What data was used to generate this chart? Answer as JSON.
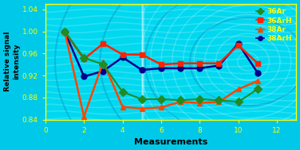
{
  "title": "",
  "xlabel": "Measurements",
  "ylabel": "Relative signal\nintensity",
  "xlim": [
    0,
    13
  ],
  "ylim": [
    0.84,
    1.05
  ],
  "yticks": [
    0.84,
    0.88,
    0.92,
    0.96,
    1.0,
    1.04
  ],
  "xticks": [
    0,
    2,
    4,
    6,
    8,
    10,
    12
  ],
  "bg_outer": "#00C8E8",
  "bg_inner": "#00D8F0",
  "series": {
    "36Ar": {
      "x": [
        1,
        2,
        3,
        4,
        5,
        6,
        7,
        8,
        9,
        10,
        11
      ],
      "y": [
        1.0,
        0.952,
        0.94,
        0.89,
        0.877,
        0.877,
        0.875,
        0.877,
        0.875,
        0.872,
        0.895
      ],
      "color": "#228B22",
      "marker": "D",
      "markersize": 5,
      "linewidth": 1.5
    },
    "36ArH": {
      "x": [
        1,
        2,
        3,
        4,
        5,
        6,
        7,
        8,
        9,
        10,
        11
      ],
      "y": [
        1.0,
        0.95,
        0.978,
        0.958,
        0.958,
        0.94,
        0.942,
        0.942,
        0.942,
        0.975,
        0.942
      ],
      "color": "#FF2200",
      "marker": "s",
      "markersize": 5,
      "linewidth": 1.8
    },
    "38Ar": {
      "x": [
        1,
        2,
        3,
        4,
        5,
        6,
        7,
        8,
        9,
        10,
        11
      ],
      "y": [
        1.0,
        0.845,
        0.945,
        0.863,
        0.86,
        0.862,
        0.872,
        0.87,
        0.872,
        0.895,
        0.91
      ],
      "color": "#FF4500",
      "marker": "^",
      "markersize": 5,
      "linewidth": 1.8
    },
    "38ArH": {
      "x": [
        1,
        2,
        3,
        4,
        5,
        6,
        7,
        8,
        9,
        10,
        11
      ],
      "y": [
        1.0,
        0.918,
        0.928,
        0.953,
        0.93,
        0.933,
        0.933,
        0.933,
        0.938,
        0.978,
        0.925
      ],
      "color": "#00008B",
      "marker": "o",
      "markersize": 5,
      "linewidth": 1.8
    }
  },
  "legend_labels": [
    "36Ar",
    "36ArH",
    "38Ar",
    "38ArH"
  ],
  "legend_colors": [
    "#228B22",
    "#FF2200",
    "#FF4500",
    "#00008B"
  ],
  "legend_markers": [
    "D",
    "s",
    "^",
    "o"
  ],
  "axis_color": "#FFFF00",
  "label_color": "#000000"
}
